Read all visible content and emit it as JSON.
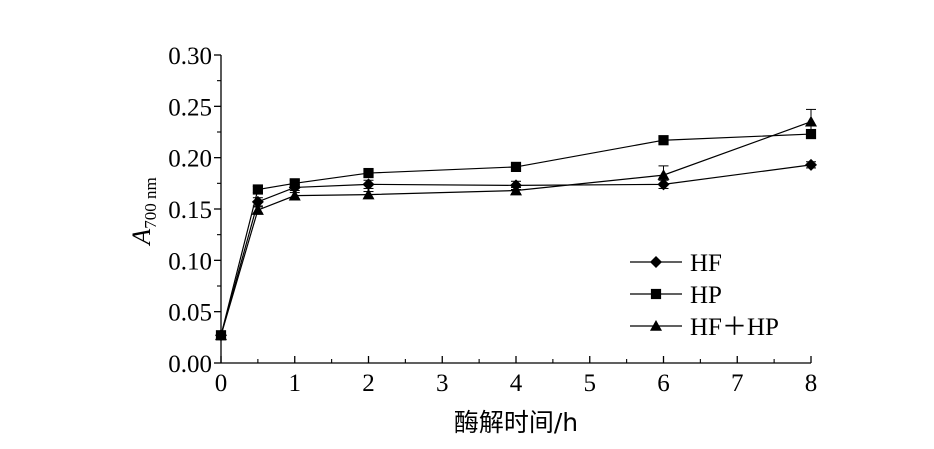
{
  "chart_data": {
    "type": "line",
    "title": "",
    "xlabel": "酶解时间/h",
    "ylabel": {
      "main": "A",
      "sub": "700 nm"
    },
    "xlim": [
      0,
      8
    ],
    "ylim": [
      0,
      0.3
    ],
    "xticks": [
      0,
      1,
      2,
      3,
      4,
      5,
      6,
      7,
      8
    ],
    "yticks": [
      0.0,
      0.05,
      0.1,
      0.15,
      0.2,
      0.25,
      0.3
    ],
    "ytick_labels": [
      "0.00",
      "0.05",
      "0.10",
      "0.15",
      "0.20",
      "0.25",
      "0.30"
    ],
    "xtick_labels": [
      "0",
      "1",
      "2",
      "3",
      "4",
      "5",
      "6",
      "7",
      "8"
    ],
    "grid": false,
    "legend_position": "bottom-right",
    "series": [
      {
        "name": "HF",
        "marker": "diamond",
        "x": [
          0,
          0.5,
          1,
          2,
          4,
          6,
          8
        ],
        "y": [
          0.027,
          0.157,
          0.171,
          0.174,
          0.173,
          0.174,
          0.193
        ],
        "err": [
          0.003,
          0.004,
          0.003,
          0.004,
          0.004,
          0.004,
          0.003
        ]
      },
      {
        "name": "HP",
        "marker": "square",
        "x": [
          0,
          0.5,
          1,
          2,
          4,
          6,
          8
        ],
        "y": [
          0.027,
          0.169,
          0.175,
          0.185,
          0.191,
          0.217,
          0.223
        ],
        "err": [
          0.003,
          0.003,
          0.003,
          0.003,
          0.003,
          0.003,
          0.003
        ]
      },
      {
        "name": "HF＋HP",
        "marker": "triangle",
        "x": [
          0,
          0.5,
          1,
          2,
          4,
          6,
          8
        ],
        "y": [
          0.027,
          0.149,
          0.163,
          0.164,
          0.168,
          0.183,
          0.235
        ],
        "err": [
          0.003,
          0.003,
          0.003,
          0.003,
          0.003,
          0.009,
          0.012
        ]
      }
    ]
  }
}
